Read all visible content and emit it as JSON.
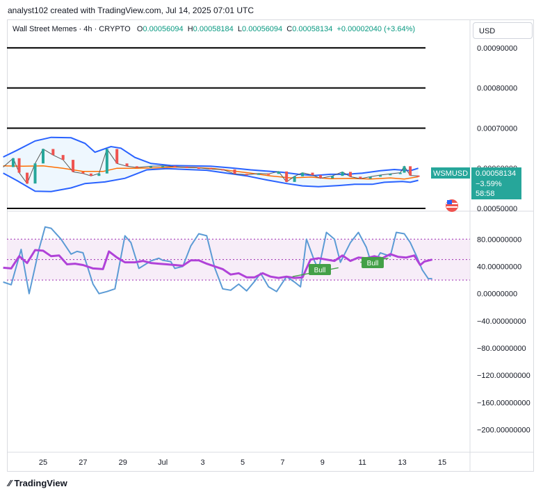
{
  "header": {
    "text": "analyst102 created with TradingView.com, Jul 14, 2025 07:01 UTC"
  },
  "legend": {
    "symbol": "Wall Street Memes · 4h · CRYPTO",
    "o_label": "O",
    "o_value": "0.00056094",
    "h_label": "H",
    "h_value": "0.00058184",
    "l_label": "L",
    "l_value": "0.00056094",
    "c_label": "C",
    "c_value": "0.00058134",
    "change": "+0.00002040 (+3.64%)"
  },
  "currency": "USD",
  "price_tag": {
    "symbol": "WSMUSD",
    "price": "0.00058134",
    "change": "−3.59%",
    "countdown": "58:58"
  },
  "footer": {
    "brand": "TradingView"
  },
  "colors": {
    "up": "#26a69a",
    "down": "#ef5350",
    "band": "#2962ff",
    "basis": "#ff6d00",
    "rsi": "#5b9bd5",
    "stoch": "#b042d8",
    "bull": "#43a047",
    "accent": "#089981"
  },
  "icons": {
    "flag": "us-flag-icon",
    "logo": "tradingview-logo-icon"
  },
  "chart_data": [
    {
      "type": "line",
      "title": "Wall Street Memes · 4h · CRYPTO",
      "ylim": [
        0.0005,
        0.00095
      ],
      "y_ticks": [
        "0.00090000",
        "0.00080000",
        "0.00070000",
        "0.00060000",
        "0.00050000"
      ],
      "x_ticks": [
        "25",
        "27",
        "29",
        "Jul",
        "3",
        "5",
        "7",
        "9",
        "11",
        "13",
        "15"
      ],
      "horizontal_levels": [
        0.0009,
        0.0008,
        0.0007,
        0.0005
      ],
      "series": [
        {
          "name": "Upper band",
          "points": [
            [
              23.0,
              0.000628
            ],
            [
              23.7,
              0.000645
            ],
            [
              24.6,
              0.000668
            ],
            [
              25.4,
              0.000677
            ],
            [
              26.4,
              0.000676
            ],
            [
              27.1,
              0.000662
            ],
            [
              27.6,
              0.00064
            ],
            [
              28.4,
              0.000654
            ],
            [
              28.9,
              0.00065
            ],
            [
              29.6,
              0.000627
            ],
            [
              30.4,
              0.000612
            ],
            [
              31.4,
              0.000607
            ],
            [
              32.4,
              0.000606
            ],
            [
              33.4,
              0.000605
            ],
            [
              34.4,
              0.000601
            ],
            [
              35.4,
              0.000596
            ],
            [
              36.2,
              0.000593
            ],
            [
              37.0,
              0.00059
            ],
            [
              37.8,
              0.000585
            ],
            [
              38.6,
              0.000582
            ],
            [
              39.4,
              0.000585
            ],
            [
              40.2,
              0.000585
            ],
            [
              41.0,
              0.000588
            ],
            [
              41.9,
              0.000594
            ],
            [
              42.6,
              0.000597
            ],
            [
              43.4,
              0.000594
            ],
            [
              43.8,
              0.0006
            ]
          ]
        },
        {
          "name": "Basis",
          "points": [
            [
              23.0,
              0.000606
            ],
            [
              24.0,
              0.000605
            ],
            [
              25.0,
              0.000606
            ],
            [
              26.0,
              0.0006
            ],
            [
              27.0,
              0.000592
            ],
            [
              28.0,
              0.000592
            ],
            [
              28.7,
              0.0006
            ],
            [
              29.6,
              0.0006
            ],
            [
              30.6,
              0.000601
            ],
            [
              31.6,
              0.000603
            ],
            [
              32.6,
              0.000602
            ],
            [
              33.6,
              0.000599
            ],
            [
              34.4,
              0.000594
            ],
            [
              35.4,
              0.000588
            ],
            [
              36.4,
              0.000581
            ],
            [
              37.4,
              0.000576
            ],
            [
              38.4,
              0.000578
            ],
            [
              39.4,
              0.000574
            ],
            [
              40.4,
              0.000575
            ],
            [
              41.4,
              0.000573
            ],
            [
              42.4,
              0.000576
            ],
            [
              43.1,
              0.000573
            ],
            [
              43.8,
              0.000579
            ]
          ]
        },
        {
          "name": "Lower band",
          "points": [
            [
              23.0,
              0.000588
            ],
            [
              23.7,
              0.000569
            ],
            [
              24.6,
              0.000543
            ],
            [
              25.4,
              0.000542
            ],
            [
              26.4,
              0.000551
            ],
            [
              27.1,
              0.000562
            ],
            [
              28.1,
              0.000566
            ],
            [
              29.1,
              0.000575
            ],
            [
              30.2,
              0.000596
            ],
            [
              31.2,
              0.000599
            ],
            [
              32.2,
              0.000597
            ],
            [
              33.2,
              0.000595
            ],
            [
              34.2,
              0.000588
            ],
            [
              35.2,
              0.000581
            ],
            [
              36.2,
              0.000571
            ],
            [
              37.2,
              0.000562
            ],
            [
              38.0,
              0.000556
            ],
            [
              38.8,
              0.000554
            ],
            [
              39.8,
              0.000557
            ],
            [
              40.6,
              0.00056
            ],
            [
              41.5,
              0.00056
            ],
            [
              42.1,
              0.000565
            ],
            [
              43.0,
              0.000567
            ],
            [
              43.4,
              0.000565
            ],
            [
              43.8,
              0.00057
            ]
          ]
        },
        {
          "name": "Price",
          "points": [
            [
              23.0,
              0.000603
            ],
            [
              23.5,
              0.000625
            ],
            [
              23.8,
              0.000589
            ],
            [
              24.2,
              0.000562
            ],
            [
              24.6,
              0.000612
            ],
            [
              25.0,
              0.000648
            ],
            [
              25.5,
              0.000633
            ],
            [
              26.0,
              0.000621
            ],
            [
              26.5,
              0.000591
            ],
            [
              27.0,
              0.000587
            ],
            [
              27.4,
              0.000581
            ],
            [
              27.8,
              0.000587
            ],
            [
              28.2,
              0.000648
            ],
            [
              28.7,
              0.000612
            ],
            [
              29.2,
              0.000605
            ],
            [
              29.7,
              0.000602
            ],
            [
              30.4,
              0.000605
            ],
            [
              31.0,
              0.000606
            ],
            [
              31.6,
              0.000604
            ],
            [
              32.2,
              0.000602
            ],
            [
              32.8,
              0.000601
            ],
            [
              33.4,
              0.000598
            ],
            [
              34.0,
              0.000597
            ],
            [
              34.6,
              0.000586
            ],
            [
              35.2,
              0.000584
            ],
            [
              35.8,
              0.000587
            ],
            [
              36.3,
              0.000586
            ],
            [
              36.8,
              0.000592
            ],
            [
              37.2,
              0.000566
            ],
            [
              37.6,
              0.00058
            ],
            [
              38.0,
              0.000589
            ],
            [
              38.5,
              0.000583
            ],
            [
              38.9,
              0.000575
            ],
            [
              39.5,
              0.000581
            ],
            [
              40.0,
              0.000591
            ],
            [
              40.4,
              0.000579
            ],
            [
              40.9,
              0.000574
            ],
            [
              41.4,
              0.000579
            ],
            [
              41.9,
              0.000583
            ],
            [
              42.4,
              0.000586
            ],
            [
              42.9,
              0.000589
            ],
            [
              43.1,
              0.000605
            ],
            [
              43.4,
              0.000582
            ],
            [
              43.8,
              0.000581
            ]
          ]
        }
      ]
    },
    {
      "type": "line",
      "title": "",
      "ylim": [
        -230,
        115
      ],
      "y_ticks": [
        "80.00000000",
        "40.00000000",
        "0.00000000",
        "−40.00000000",
        "−80.00000000",
        "−120.00000000",
        "−160.00000000",
        "−200.00000000"
      ],
      "x_ticks": [
        "25",
        "27",
        "29",
        "Jul",
        "3",
        "5",
        "7",
        "9",
        "11",
        "13",
        "15"
      ],
      "reference_levels": [
        80,
        50,
        20
      ],
      "annotations": [
        "Bull",
        "Bull"
      ],
      "series": [
        {
          "name": "Fast",
          "points": [
            [
              23.0,
              17
            ],
            [
              23.4,
              13
            ],
            [
              23.9,
              65
            ],
            [
              24.3,
              0
            ],
            [
              24.8,
              66
            ],
            [
              25.1,
              98
            ],
            [
              25.4,
              96
            ],
            [
              25.9,
              80
            ],
            [
              26.4,
              58
            ],
            [
              26.7,
              62
            ],
            [
              27.0,
              60
            ],
            [
              27.5,
              14
            ],
            [
              27.8,
              0
            ],
            [
              28.2,
              3
            ],
            [
              28.6,
              7
            ],
            [
              29.1,
              85
            ],
            [
              29.4,
              75
            ],
            [
              29.8,
              37
            ],
            [
              30.4,
              48
            ],
            [
              30.8,
              52
            ],
            [
              31.0,
              49
            ],
            [
              31.4,
              47
            ],
            [
              31.6,
              37
            ],
            [
              32.0,
              40
            ],
            [
              32.4,
              70
            ],
            [
              32.8,
              88
            ],
            [
              33.2,
              85
            ],
            [
              33.6,
              38
            ],
            [
              34.0,
              7
            ],
            [
              34.4,
              5
            ],
            [
              34.8,
              14
            ],
            [
              35.2,
              4
            ],
            [
              35.6,
              18
            ],
            [
              35.9,
              30
            ],
            [
              36.3,
              10
            ],
            [
              36.7,
              3
            ],
            [
              37.2,
              25
            ],
            [
              37.6,
              17
            ],
            [
              37.9,
              10
            ],
            [
              38.2,
              80
            ],
            [
              38.6,
              48
            ],
            [
              38.8,
              35
            ],
            [
              39.2,
              90
            ],
            [
              39.6,
              80
            ],
            [
              39.9,
              46
            ],
            [
              40.4,
              75
            ],
            [
              40.8,
              90
            ],
            [
              41.2,
              68
            ],
            [
              41.5,
              40
            ],
            [
              41.9,
              60
            ],
            [
              42.4,
              55
            ],
            [
              42.7,
              90
            ],
            [
              43.1,
              88
            ],
            [
              43.4,
              75
            ],
            [
              43.7,
              56
            ],
            [
              44.0,
              35
            ],
            [
              44.3,
              22
            ],
            [
              44.5,
              22
            ]
          ]
        },
        {
          "name": "Slow",
          "points": [
            [
              23.0,
              38
            ],
            [
              23.4,
              37
            ],
            [
              23.8,
              55
            ],
            [
              24.2,
              45
            ],
            [
              24.6,
              64
            ],
            [
              25.0,
              63
            ],
            [
              25.4,
              55
            ],
            [
              25.8,
              56
            ],
            [
              26.2,
              43
            ],
            [
              26.6,
              44
            ],
            [
              27.0,
              42
            ],
            [
              27.5,
              37
            ],
            [
              28.0,
              36
            ],
            [
              28.3,
              62
            ],
            [
              28.7,
              53
            ],
            [
              29.1,
              46
            ],
            [
              29.6,
              46
            ],
            [
              30.0,
              48
            ],
            [
              30.4,
              45
            ],
            [
              30.8,
              44
            ],
            [
              31.2,
              43
            ],
            [
              31.6,
              42
            ],
            [
              32.0,
              41
            ],
            [
              32.4,
              49
            ],
            [
              32.8,
              49
            ],
            [
              33.2,
              44
            ],
            [
              33.6,
              40
            ],
            [
              34.0,
              36
            ],
            [
              34.4,
              28
            ],
            [
              34.8,
              30
            ],
            [
              35.2,
              24
            ],
            [
              35.6,
              24
            ],
            [
              36.0,
              30
            ],
            [
              36.4,
              25
            ],
            [
              36.8,
              23
            ],
            [
              37.2,
              25
            ],
            [
              37.6,
              23
            ],
            [
              38.0,
              24
            ],
            [
              38.4,
              50
            ],
            [
              38.8,
              52
            ],
            [
              39.2,
              50
            ],
            [
              39.6,
              48
            ],
            [
              40.0,
              56
            ],
            [
              40.4,
              48
            ],
            [
              40.8,
              53
            ],
            [
              41.2,
              52
            ],
            [
              41.6,
              55
            ],
            [
              42.0,
              52
            ],
            [
              42.4,
              58
            ],
            [
              42.8,
              54
            ],
            [
              43.2,
              53
            ],
            [
              43.6,
              56
            ],
            [
              43.9,
              42
            ],
            [
              44.1,
              47
            ],
            [
              44.5,
              50
            ]
          ]
        }
      ]
    }
  ]
}
